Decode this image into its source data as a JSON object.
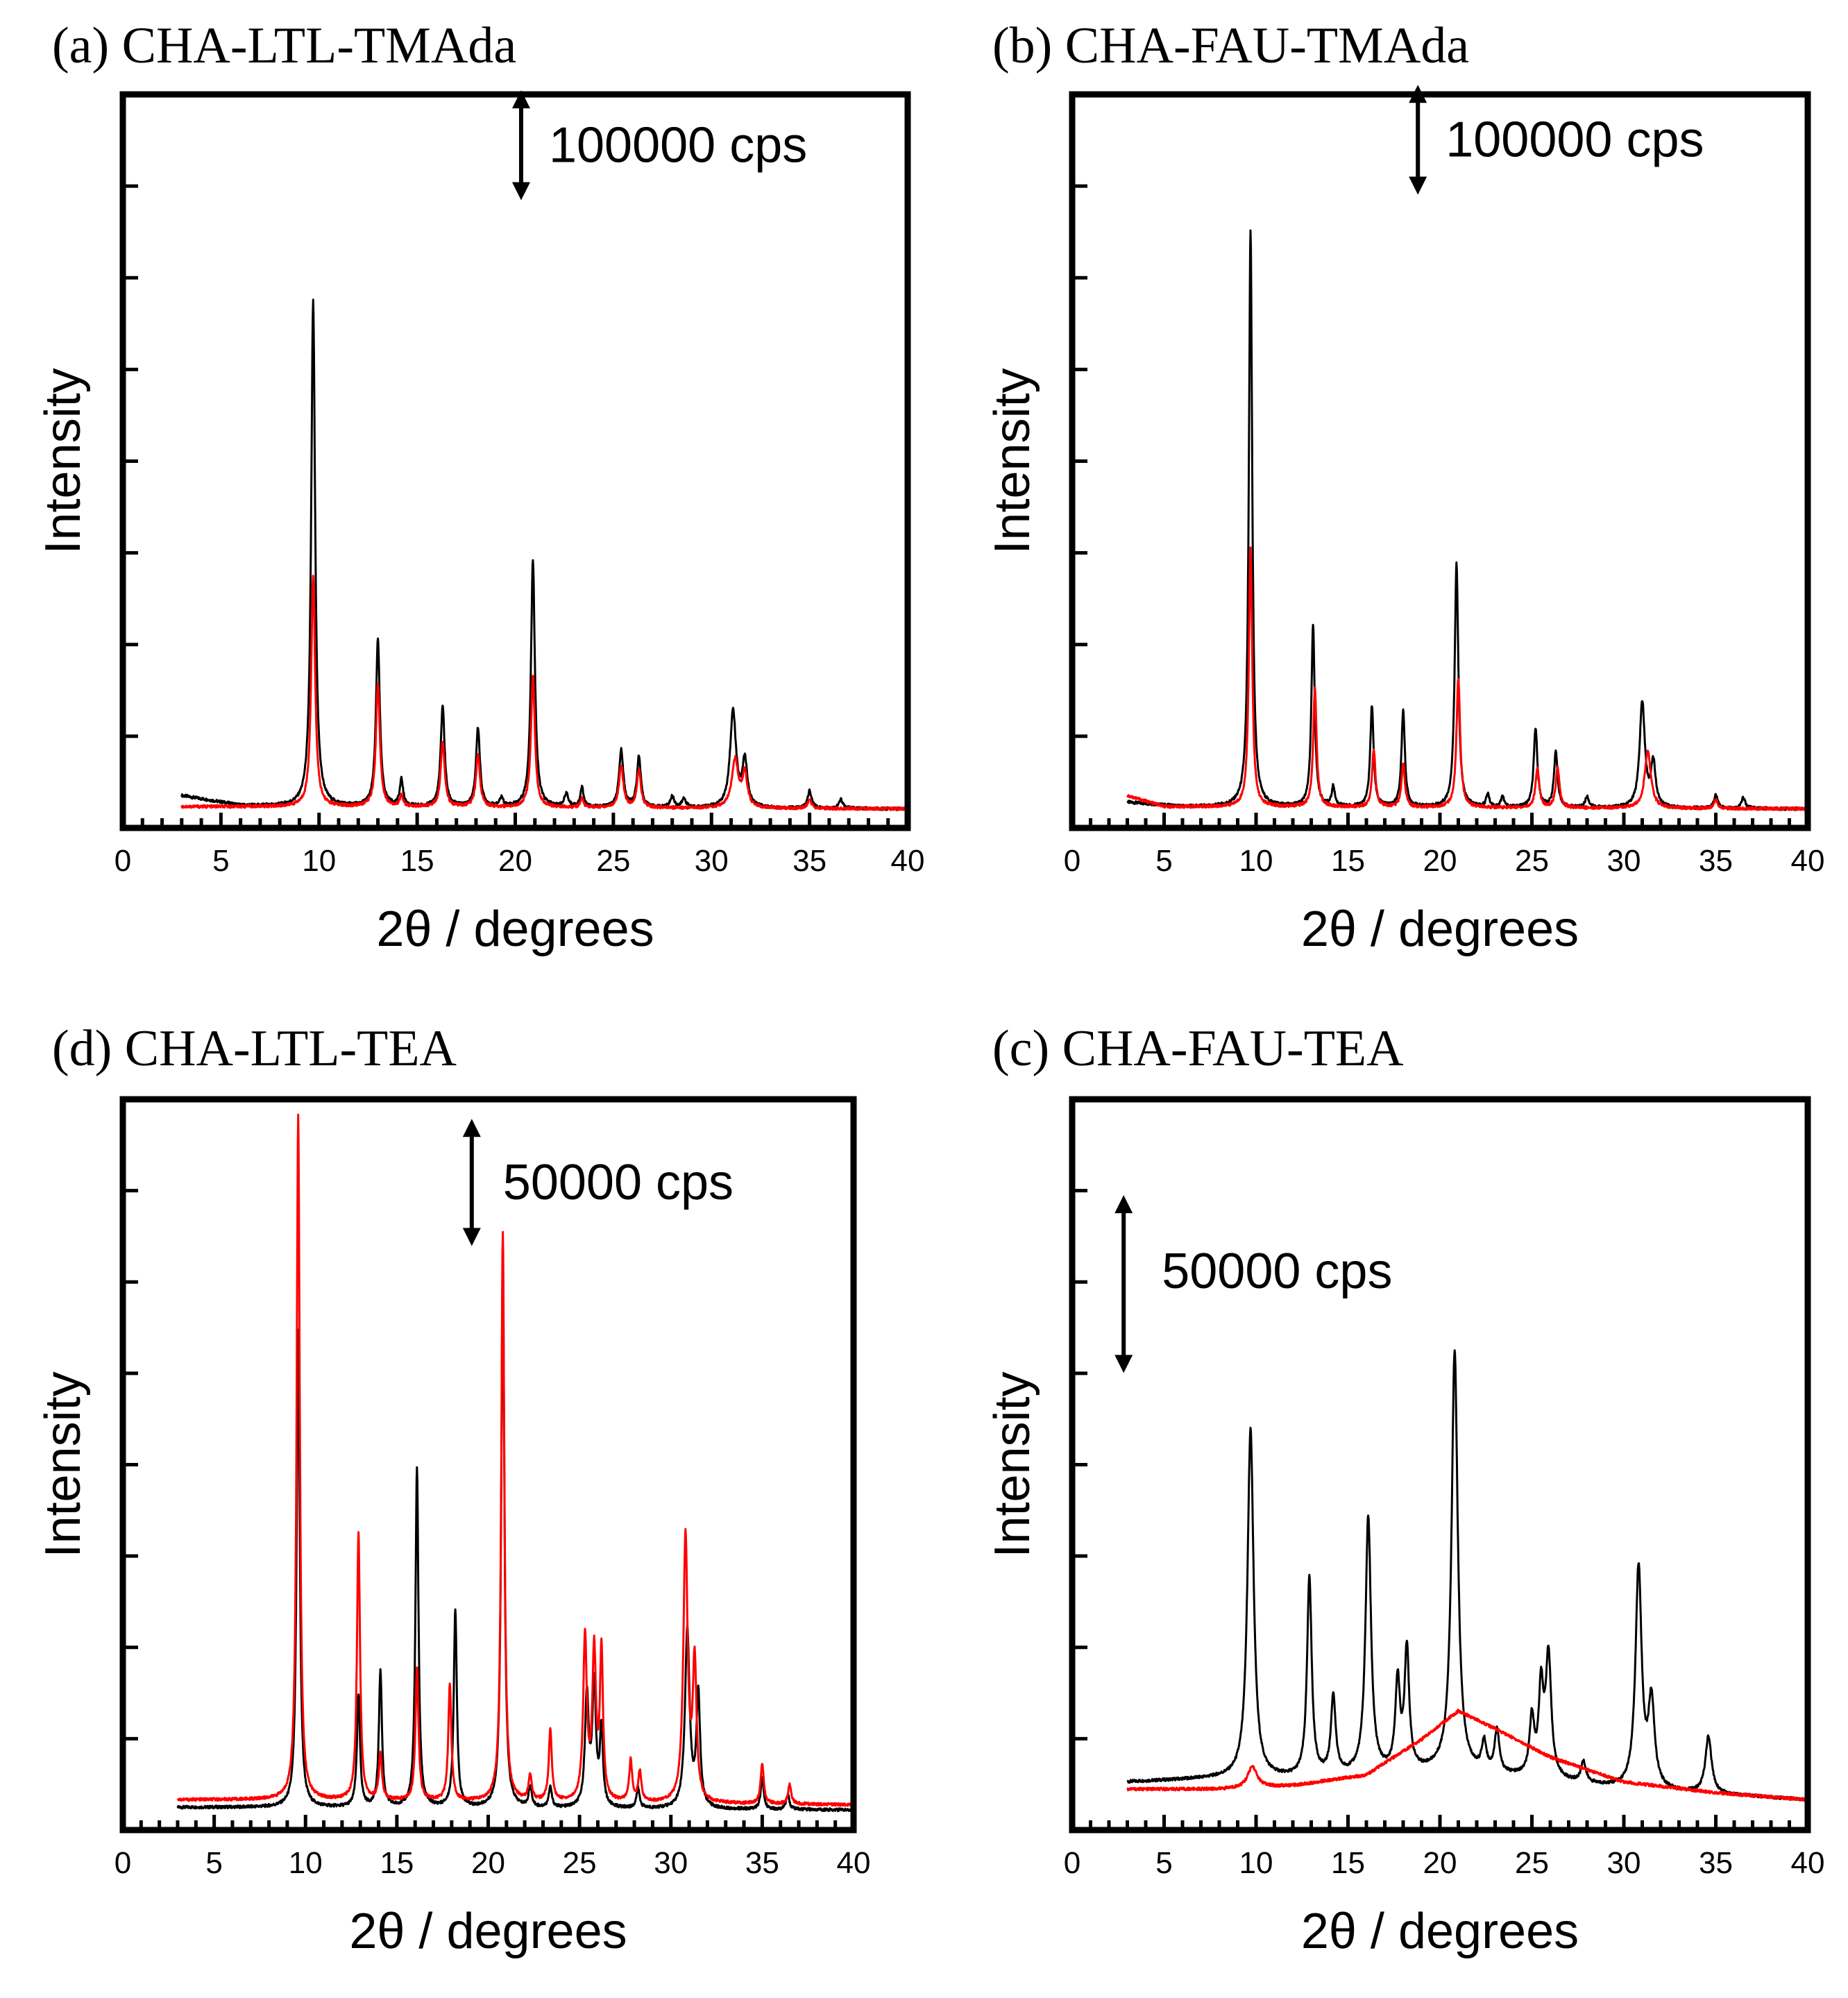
{
  "chart_data": [
    {
      "panel": "a",
      "type": "line",
      "title": "(a) CHA-LTL-TMAda",
      "xlabel": "2θ / degrees",
      "ylabel": "Intensity",
      "xlim": [
        0,
        40
      ],
      "ylim": [
        0,
        650000
      ],
      "xticks": [
        0,
        5,
        10,
        15,
        20,
        25,
        30,
        35,
        40
      ],
      "scale_bar": {
        "label": "100000 cps",
        "value": 100000,
        "start": 560000
      },
      "series": [
        {
          "name": "black",
          "color": "#000000",
          "start_x": 3,
          "baseline": [
            [
              3,
              18000
            ],
            [
              6,
              9000
            ],
            [
              9,
              8000
            ],
            [
              40,
              6000
            ]
          ],
          "peaks": [
            [
              9.7,
              460000,
              0.12
            ],
            [
              13.0,
              152000,
              0.12
            ],
            [
              14.2,
              24000,
              0.1
            ],
            [
              16.3,
              92000,
              0.12
            ],
            [
              18.1,
              72000,
              0.12
            ],
            [
              19.3,
              8000,
              0.1
            ],
            [
              20.9,
              225000,
              0.12
            ],
            [
              22.6,
              12000,
              0.12
            ],
            [
              23.4,
              18000,
              0.1
            ],
            [
              25.4,
              52000,
              0.13
            ],
            [
              26.3,
              46000,
              0.12
            ],
            [
              28.0,
              10000,
              0.12
            ],
            [
              28.6,
              8000,
              0.12
            ],
            [
              31.1,
              88000,
              0.18
            ],
            [
              31.7,
              42000,
              0.15
            ],
            [
              35.0,
              16000,
              0.12
            ],
            [
              36.6,
              8000,
              0.12
            ]
          ]
        },
        {
          "name": "red",
          "color": "#ff0000",
          "start_x": 3,
          "baseline": [
            [
              3,
              8000
            ],
            [
              8,
              8000
            ],
            [
              40,
              6000
            ]
          ],
          "peaks": [
            [
              9.7,
              210000,
              0.12
            ],
            [
              13.0,
              112000,
              0.12
            ],
            [
              14.2,
              10000,
              0.1
            ],
            [
              16.3,
              60000,
              0.12
            ],
            [
              18.1,
              48000,
              0.12
            ],
            [
              20.9,
              120000,
              0.12
            ],
            [
              23.4,
              8000,
              0.1
            ],
            [
              25.4,
              38000,
              0.13
            ],
            [
              26.3,
              34000,
              0.12
            ],
            [
              31.2,
              44000,
              0.2
            ],
            [
              31.7,
              30000,
              0.15
            ],
            [
              35.0,
              8000,
              0.12
            ]
          ]
        }
      ]
    },
    {
      "panel": "b",
      "type": "line",
      "title": "(b) CHA-FAU-TMAda",
      "xlabel": "2θ / degrees",
      "ylabel": "Intensity",
      "xlim": [
        0,
        40
      ],
      "ylim": [
        0,
        650000
      ],
      "xticks": [
        0,
        5,
        10,
        15,
        20,
        25,
        30,
        35,
        40
      ],
      "scale_bar": {
        "label": "100000 cps",
        "value": 100000,
        "start": 565000
      },
      "series": [
        {
          "name": "black",
          "color": "#000000",
          "start_x": 3,
          "baseline": [
            [
              3,
              12000
            ],
            [
              6,
              8000
            ],
            [
              40,
              6000
            ]
          ],
          "peaks": [
            [
              9.7,
              525000,
              0.11
            ],
            [
              13.1,
              165000,
              0.11
            ],
            [
              14.2,
              18000,
              0.1
            ],
            [
              16.3,
              92000,
              0.11
            ],
            [
              18.0,
              88000,
              0.11
            ],
            [
              20.9,
              222000,
              0.12
            ],
            [
              22.6,
              12000,
              0.1
            ],
            [
              23.4,
              10000,
              0.1
            ],
            [
              25.2,
              72000,
              0.12
            ],
            [
              26.3,
              50000,
              0.12
            ],
            [
              28.0,
              10000,
              0.12
            ],
            [
              31.0,
              96000,
              0.17
            ],
            [
              31.6,
              40000,
              0.15
            ],
            [
              35.0,
              12000,
              0.12
            ],
            [
              36.5,
              10000,
              0.12
            ]
          ]
        },
        {
          "name": "red",
          "color": "#ff0000",
          "start_x": 3,
          "baseline": [
            [
              3,
              18000
            ],
            [
              5,
              8000
            ],
            [
              40,
              6000
            ]
          ],
          "peaks": [
            [
              9.7,
              235000,
              0.11
            ],
            [
              13.2,
              108000,
              0.11
            ],
            [
              16.4,
              52000,
              0.11
            ],
            [
              18.0,
              40000,
              0.11
            ],
            [
              21.0,
              118000,
              0.12
            ],
            [
              25.3,
              36000,
              0.12
            ],
            [
              26.4,
              36000,
              0.12
            ],
            [
              31.3,
              52000,
              0.2
            ],
            [
              35.0,
              8000,
              0.12
            ]
          ]
        }
      ]
    },
    {
      "panel": "d",
      "type": "line",
      "title": "(d) CHA-LTL-TEA",
      "xlabel": "2θ / degrees",
      "ylabel": "Intensity",
      "xlim": [
        0,
        40
      ],
      "ylim": [
        0,
        280000
      ],
      "xticks": [
        0,
        5,
        10,
        15,
        20,
        25,
        30,
        35,
        40
      ],
      "scale_bar": {
        "label": "50000 cps",
        "value": 50000,
        "start": 225000
      },
      "series": [
        {
          "name": "black",
          "color": "#000000",
          "start_x": 3,
          "baseline": [
            [
              3,
              4000
            ],
            [
              8,
              4000
            ],
            [
              40,
              3000
            ]
          ],
          "peaks": [
            [
              9.6,
              188000,
              0.1
            ],
            [
              12.9,
              44000,
              0.1
            ],
            [
              14.1,
              54000,
              0.1
            ],
            [
              16.1,
              134000,
              0.1
            ],
            [
              18.2,
              78000,
              0.1
            ],
            [
              20.8,
              218000,
              0.1
            ],
            [
              22.3,
              8000,
              0.1
            ],
            [
              23.4,
              8000,
              0.1
            ],
            [
              25.4,
              44000,
              0.12
            ],
            [
              25.8,
              48000,
              0.12
            ],
            [
              26.2,
              30000,
              0.1
            ],
            [
              28.2,
              8000,
              0.1
            ],
            [
              30.9,
              70000,
              0.15
            ],
            [
              31.5,
              44000,
              0.12
            ],
            [
              35.0,
              12000,
              0.1
            ],
            [
              36.4,
              6000,
              0.1
            ]
          ]
        },
        {
          "name": "red",
          "color": "#ff0000",
          "start_x": 3,
          "baseline": [
            [
              3,
              7000
            ],
            [
              8,
              7000
            ],
            [
              40,
              5000
            ]
          ],
          "peaks": [
            [
              9.6,
              270000,
              0.1
            ],
            [
              12.9,
              105000,
              0.1
            ],
            [
              14.1,
              18000,
              0.1
            ],
            [
              16.1,
              52000,
              0.1
            ],
            [
              17.9,
              46000,
              0.1
            ],
            [
              20.8,
              224000,
              0.1
            ],
            [
              22.3,
              10000,
              0.1
            ],
            [
              23.4,
              28000,
              0.1
            ],
            [
              25.3,
              64000,
              0.12
            ],
            [
              25.8,
              58000,
              0.12
            ],
            [
              26.2,
              58000,
              0.1
            ],
            [
              27.8,
              16000,
              0.1
            ],
            [
              28.3,
              12000,
              0.1
            ],
            [
              30.8,
              105000,
              0.14
            ],
            [
              31.3,
              54000,
              0.12
            ],
            [
              35.0,
              16000,
              0.1
            ],
            [
              36.5,
              8000,
              0.1
            ]
          ]
        }
      ]
    },
    {
      "panel": "c",
      "type": "line",
      "title": "(c) CHA-FAU-TEA",
      "xlabel": "2θ / degrees",
      "ylabel": "Intensity",
      "xlim": [
        0,
        40
      ],
      "ylim": [
        0,
        200000
      ],
      "xticks": [
        0,
        5,
        10,
        15,
        20,
        25,
        30,
        35,
        40
      ],
      "scale_bar": {
        "label": "50000 cps",
        "value": 50000,
        "start": 125000
      },
      "series": [
        {
          "name": "black",
          "color": "#000000",
          "start_x": 3,
          "baseline": [
            [
              3,
              10000
            ],
            [
              8,
              11000
            ],
            [
              12,
              11000
            ],
            [
              20,
              13000
            ],
            [
              25,
              11000
            ],
            [
              30,
              8000
            ],
            [
              40,
              5000
            ]
          ],
          "peaks": [
            [
              9.7,
              98000,
              0.2
            ],
            [
              12.9,
              56000,
              0.15
            ],
            [
              14.2,
              22000,
              0.15
            ],
            [
              16.1,
              72000,
              0.18
            ],
            [
              17.7,
              25000,
              0.15
            ],
            [
              18.2,
              34000,
              0.15
            ],
            [
              20.8,
              118000,
              0.2
            ],
            [
              22.4,
              8000,
              0.15
            ],
            [
              23.1,
              12000,
              0.15
            ],
            [
              25.0,
              16000,
              0.15
            ],
            [
              25.5,
              24000,
              0.15
            ],
            [
              25.9,
              34000,
              0.18
            ],
            [
              27.8,
              6000,
              0.15
            ],
            [
              30.8,
              62000,
              0.2
            ],
            [
              31.5,
              24000,
              0.2
            ],
            [
              34.6,
              16000,
              0.2
            ]
          ]
        },
        {
          "name": "red",
          "color": "#ff0000",
          "start_x": 3,
          "baseline": [
            [
              3,
              8000
            ],
            [
              8,
              8000
            ],
            [
              12,
              9000
            ],
            [
              16,
              12000
            ],
            [
              19,
              22000
            ],
            [
              21,
              30000
            ],
            [
              23,
              25000
            ],
            [
              26,
              17000
            ],
            [
              30,
              10000
            ],
            [
              35,
              7000
            ],
            [
              40,
              5000
            ]
          ],
          "peaks": [
            [
              9.8,
              6000,
              0.3
            ]
          ]
        }
      ]
    }
  ]
}
